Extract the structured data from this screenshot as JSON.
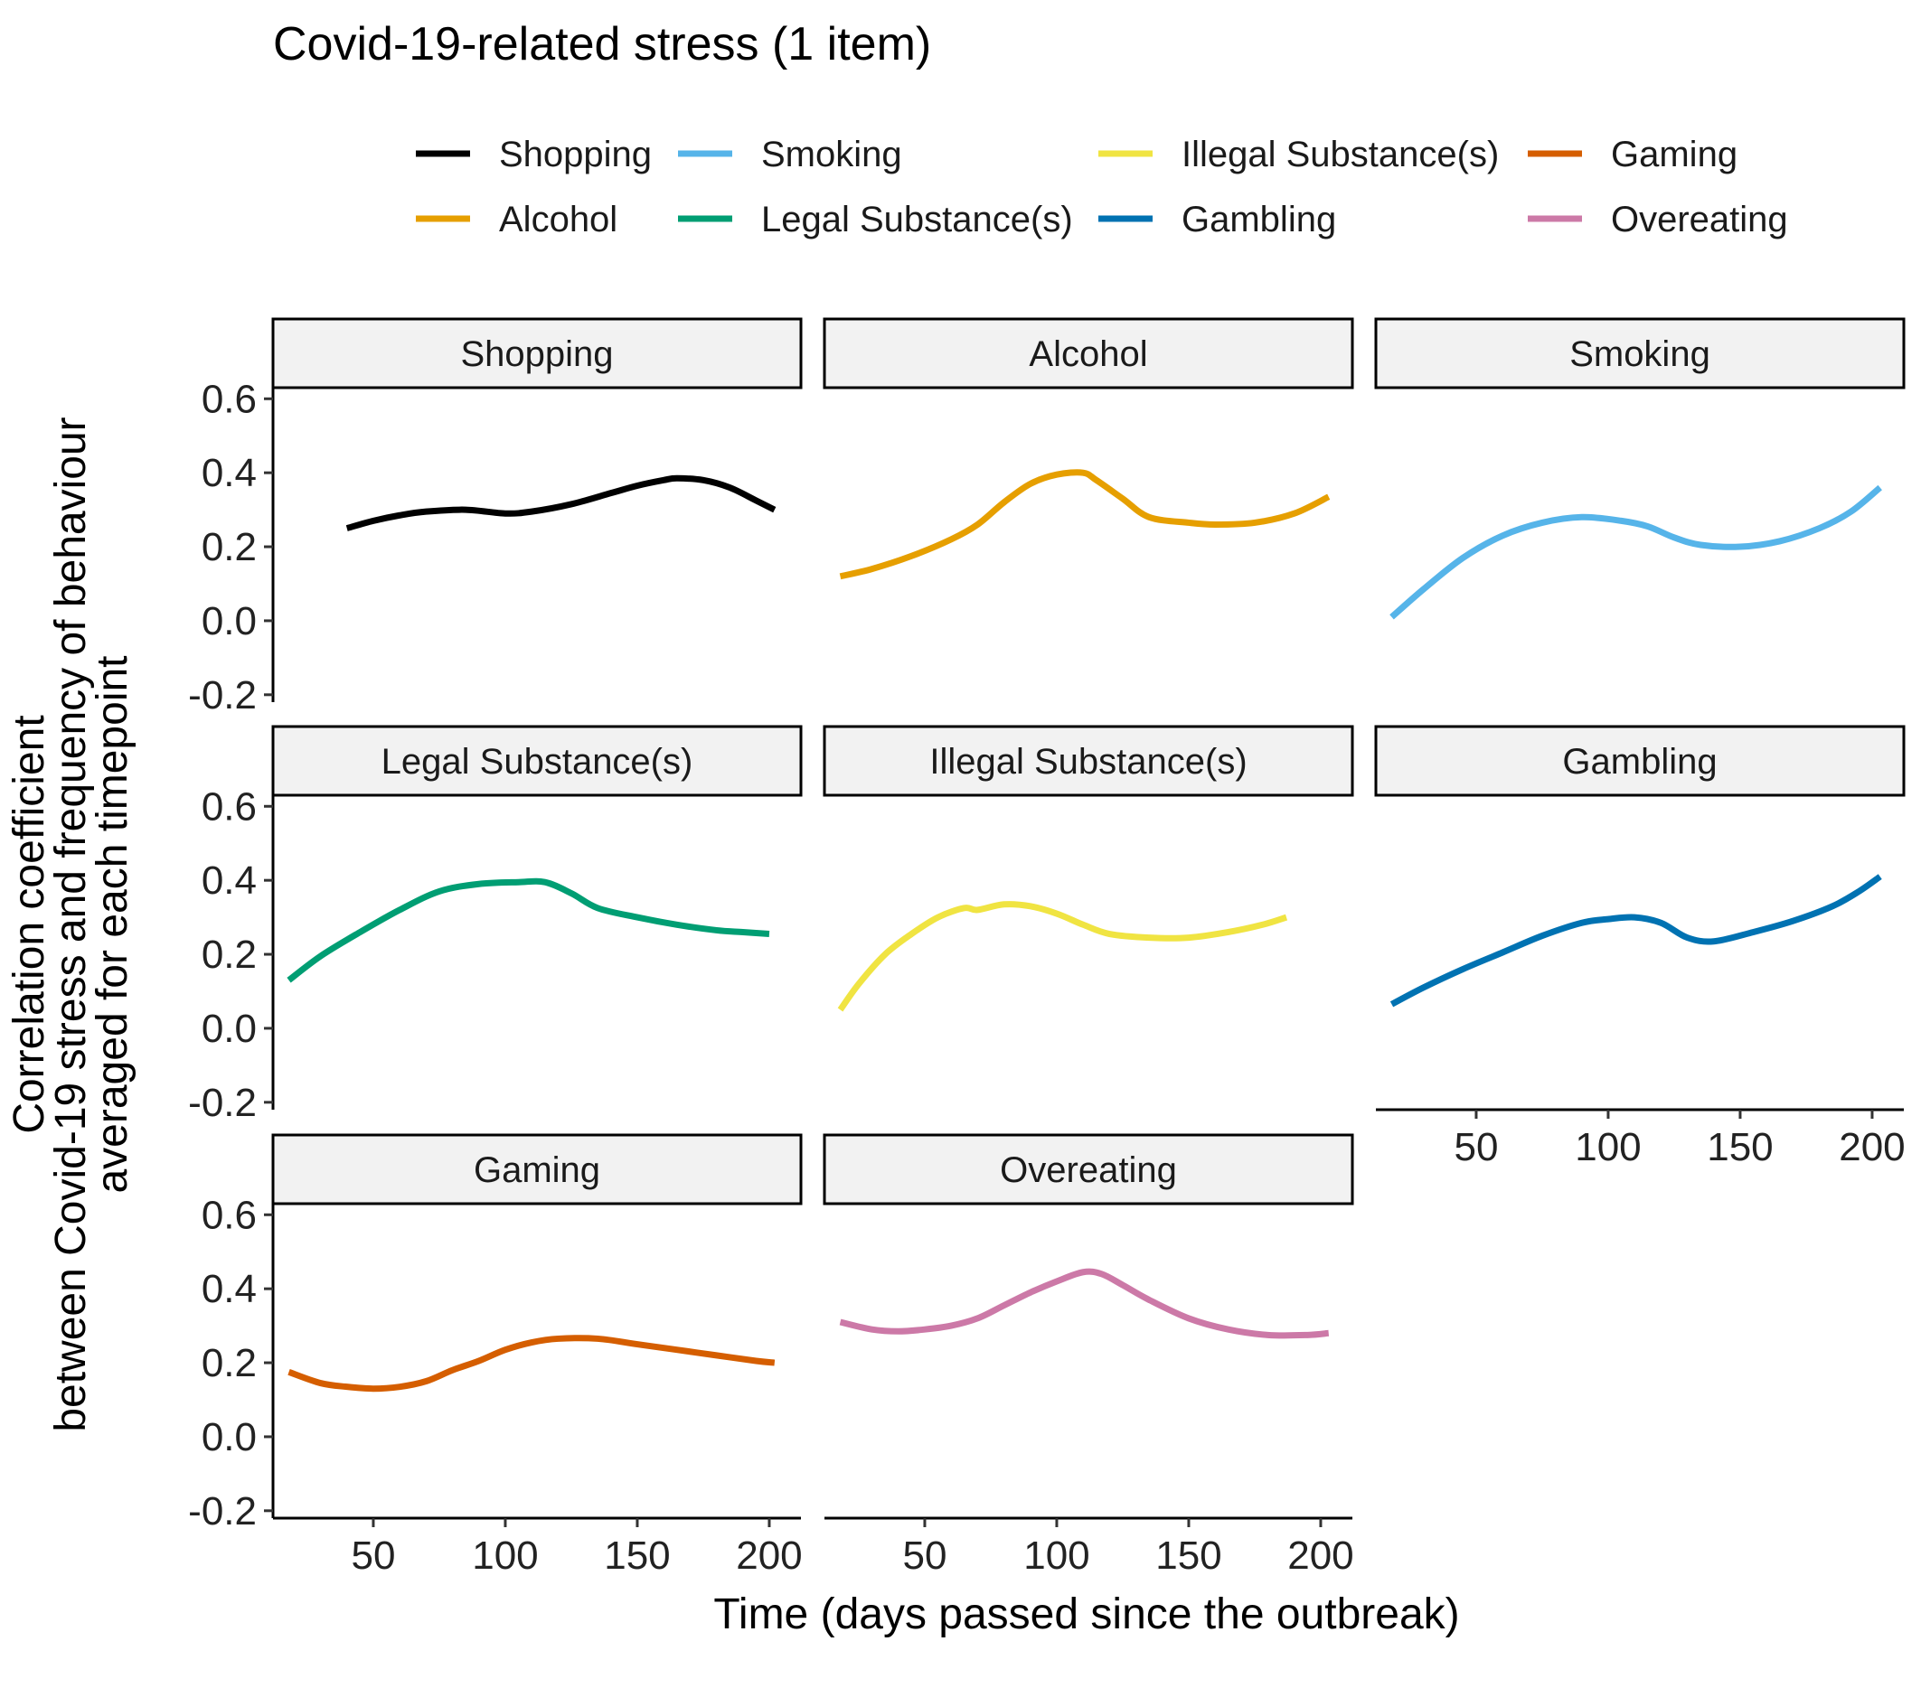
{
  "chart_data": {
    "type": "line",
    "title": "Covid-19-related stress (1 item)",
    "xlabel": "Time (days passed since the outbreak)",
    "ylabel_lines": [
      "Correlation coefficient",
      "between Covid-19 stress and frequency of behaviour",
      "averaged for each timepoint"
    ],
    "xlim": [
      12,
      212
    ],
    "ylim": [
      -0.22,
      0.63
    ],
    "x_ticks": [
      50,
      100,
      150,
      200
    ],
    "x_tick_labels": [
      "50",
      "100",
      "150",
      "200"
    ],
    "y_ticks": [
      -0.2,
      0.0,
      0.2,
      0.4,
      0.6
    ],
    "y_tick_labels": [
      "-0.2",
      "0.0",
      "0.2",
      "0.4",
      "0.6"
    ],
    "grid": false,
    "legend_position": "top",
    "legend_columns": [
      [
        "Shopping",
        "Alcohol"
      ],
      [
        "Smoking",
        "Legal Substance(s)"
      ],
      [
        "Illegal Substance(s)",
        "Gambling"
      ],
      [
        "Gaming",
        "Overeating"
      ]
    ],
    "series": [
      {
        "name": "Shopping",
        "color": "#000000",
        "points": [
          [
            40,
            0.25
          ],
          [
            50,
            0.27
          ],
          [
            60,
            0.285
          ],
          [
            70,
            0.295
          ],
          [
            85,
            0.3
          ],
          [
            100,
            0.29
          ],
          [
            110,
            0.295
          ],
          [
            125,
            0.315
          ],
          [
            140,
            0.345
          ],
          [
            150,
            0.365
          ],
          [
            160,
            0.38
          ],
          [
            165,
            0.385
          ],
          [
            175,
            0.38
          ],
          [
            185,
            0.36
          ],
          [
            195,
            0.325
          ],
          [
            202,
            0.3
          ]
        ]
      },
      {
        "name": "Alcohol",
        "color": "#E69F00",
        "points": [
          [
            18,
            0.12
          ],
          [
            30,
            0.14
          ],
          [
            45,
            0.175
          ],
          [
            60,
            0.22
          ],
          [
            70,
            0.26
          ],
          [
            80,
            0.32
          ],
          [
            90,
            0.37
          ],
          [
            100,
            0.395
          ],
          [
            110,
            0.4
          ],
          [
            115,
            0.38
          ],
          [
            125,
            0.33
          ],
          [
            135,
            0.28
          ],
          [
            150,
            0.265
          ],
          [
            160,
            0.26
          ],
          [
            175,
            0.265
          ],
          [
            190,
            0.29
          ],
          [
            203,
            0.335
          ]
        ]
      },
      {
        "name": "Smoking",
        "color": "#56B4E9",
        "points": [
          [
            18,
            0.01
          ],
          [
            30,
            0.085
          ],
          [
            45,
            0.17
          ],
          [
            60,
            0.23
          ],
          [
            75,
            0.265
          ],
          [
            90,
            0.28
          ],
          [
            105,
            0.27
          ],
          [
            115,
            0.255
          ],
          [
            125,
            0.225
          ],
          [
            135,
            0.205
          ],
          [
            150,
            0.2
          ],
          [
            165,
            0.215
          ],
          [
            180,
            0.25
          ],
          [
            192,
            0.295
          ],
          [
            203,
            0.36
          ]
        ]
      },
      {
        "name": "Legal Substance(s)",
        "color": "#009E73",
        "points": [
          [
            18,
            0.13
          ],
          [
            30,
            0.195
          ],
          [
            45,
            0.26
          ],
          [
            60,
            0.32
          ],
          [
            75,
            0.37
          ],
          [
            90,
            0.39
          ],
          [
            105,
            0.395
          ],
          [
            115,
            0.395
          ],
          [
            125,
            0.365
          ],
          [
            135,
            0.325
          ],
          [
            150,
            0.3
          ],
          [
            165,
            0.28
          ],
          [
            180,
            0.265
          ],
          [
            190,
            0.26
          ],
          [
            200,
            0.255
          ]
        ]
      },
      {
        "name": "Illegal Substance(s)",
        "color": "#F0E442",
        "points": [
          [
            18,
            0.05
          ],
          [
            25,
            0.12
          ],
          [
            35,
            0.2
          ],
          [
            45,
            0.255
          ],
          [
            55,
            0.3
          ],
          [
            65,
            0.325
          ],
          [
            70,
            0.32
          ],
          [
            80,
            0.335
          ],
          [
            90,
            0.33
          ],
          [
            100,
            0.31
          ],
          [
            110,
            0.28
          ],
          [
            120,
            0.255
          ],
          [
            135,
            0.245
          ],
          [
            150,
            0.245
          ],
          [
            165,
            0.26
          ],
          [
            178,
            0.28
          ],
          [
            187,
            0.3
          ]
        ]
      },
      {
        "name": "Gambling",
        "color": "#0072B2",
        "points": [
          [
            18,
            0.065
          ],
          [
            30,
            0.11
          ],
          [
            45,
            0.16
          ],
          [
            60,
            0.205
          ],
          [
            75,
            0.25
          ],
          [
            90,
            0.285
          ],
          [
            100,
            0.295
          ],
          [
            110,
            0.3
          ],
          [
            120,
            0.285
          ],
          [
            130,
            0.245
          ],
          [
            140,
            0.235
          ],
          [
            155,
            0.26
          ],
          [
            170,
            0.29
          ],
          [
            185,
            0.33
          ],
          [
            195,
            0.37
          ],
          [
            203,
            0.41
          ]
        ]
      },
      {
        "name": "Gaming",
        "color": "#D55E00",
        "points": [
          [
            18,
            0.175
          ],
          [
            30,
            0.145
          ],
          [
            40,
            0.135
          ],
          [
            50,
            0.13
          ],
          [
            60,
            0.135
          ],
          [
            70,
            0.15
          ],
          [
            80,
            0.18
          ],
          [
            90,
            0.205
          ],
          [
            100,
            0.235
          ],
          [
            110,
            0.255
          ],
          [
            120,
            0.265
          ],
          [
            135,
            0.265
          ],
          [
            150,
            0.25
          ],
          [
            165,
            0.235
          ],
          [
            180,
            0.22
          ],
          [
            195,
            0.205
          ],
          [
            202,
            0.2
          ]
        ]
      },
      {
        "name": "Overeating",
        "color": "#CC79A7",
        "points": [
          [
            18,
            0.31
          ],
          [
            30,
            0.29
          ],
          [
            40,
            0.285
          ],
          [
            50,
            0.29
          ],
          [
            60,
            0.3
          ],
          [
            70,
            0.32
          ],
          [
            80,
            0.355
          ],
          [
            90,
            0.39
          ],
          [
            100,
            0.42
          ],
          [
            110,
            0.445
          ],
          [
            117,
            0.44
          ],
          [
            125,
            0.41
          ],
          [
            135,
            0.37
          ],
          [
            150,
            0.32
          ],
          [
            165,
            0.29
          ],
          [
            180,
            0.275
          ],
          [
            195,
            0.275
          ],
          [
            203,
            0.28
          ]
        ]
      }
    ]
  }
}
